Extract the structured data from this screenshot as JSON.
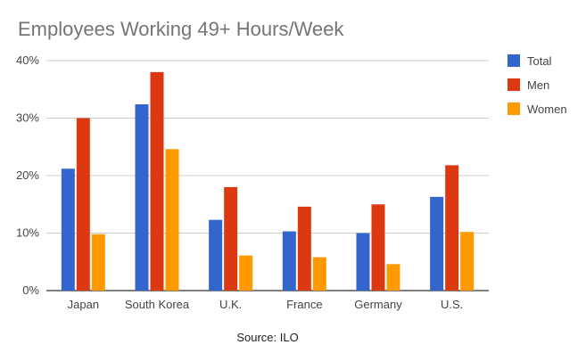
{
  "chart_data": {
    "type": "bar",
    "title": "Employees Working 49+ Hours/Week",
    "categories": [
      "Japan",
      "South Korea",
      "U.K.",
      "France",
      "Germany",
      "U.S."
    ],
    "series": [
      {
        "name": "Total",
        "color": "#3366cc",
        "values": [
          21.2,
          32.4,
          12.3,
          10.3,
          10.0,
          16.3
        ]
      },
      {
        "name": "Men",
        "color": "#dc3912",
        "values": [
          30.0,
          38.0,
          18.0,
          14.6,
          15.0,
          21.8
        ]
      },
      {
        "name": "Women",
        "color": "#ff9900",
        "values": [
          9.8,
          24.6,
          6.1,
          5.8,
          4.6,
          10.2
        ]
      }
    ],
    "ylim": [
      0,
      40
    ],
    "yticks": [
      "0%",
      "10%",
      "20%",
      "30%",
      "40%"
    ],
    "ytick_values": [
      0,
      10,
      20,
      30,
      40
    ],
    "grid": true,
    "legend_position": "right",
    "source": "Source: ILO"
  }
}
